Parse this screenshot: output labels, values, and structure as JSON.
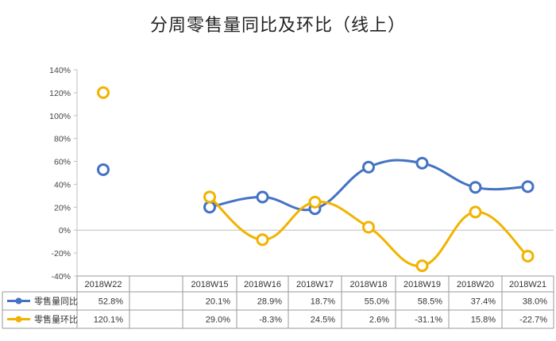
{
  "title": "分周零售量同比及环比（线上）",
  "chart_data": {
    "type": "line",
    "title": "分周零售量同比及环比（线上）",
    "categories": [
      "2018W22",
      "",
      "2018W15",
      "2018W16",
      "2018W17",
      "2018W18",
      "2018W19",
      "2018W20",
      "2018W21"
    ],
    "y_ticks": [
      "140%",
      "120%",
      "100%",
      "80%",
      "60%",
      "40%",
      "20%",
      "0%",
      "-20%",
      "-40%"
    ],
    "ylim": [
      -40,
      140
    ],
    "grid": false,
    "legend": "table-bottom",
    "series": [
      {
        "name": "零售量同比",
        "color": "#4472c4",
        "values": [
          52.8,
          null,
          20.1,
          28.9,
          18.7,
          55.0,
          58.5,
          37.4,
          38.0
        ],
        "labels": [
          "52.8%",
          "",
          "20.1%",
          "28.9%",
          "18.7%",
          "55.0%",
          "58.5%",
          "37.4%",
          "38.0%"
        ]
      },
      {
        "name": "零售量环比",
        "color": "#f2b300",
        "values": [
          120.1,
          null,
          29.0,
          -8.3,
          24.5,
          2.6,
          -31.1,
          15.8,
          -22.7
        ],
        "labels": [
          "120.1%",
          "",
          "29.0%",
          "-8.3%",
          "24.5%",
          "2.6%",
          "-31.1%",
          "15.8%",
          "-22.7%"
        ]
      }
    ]
  }
}
